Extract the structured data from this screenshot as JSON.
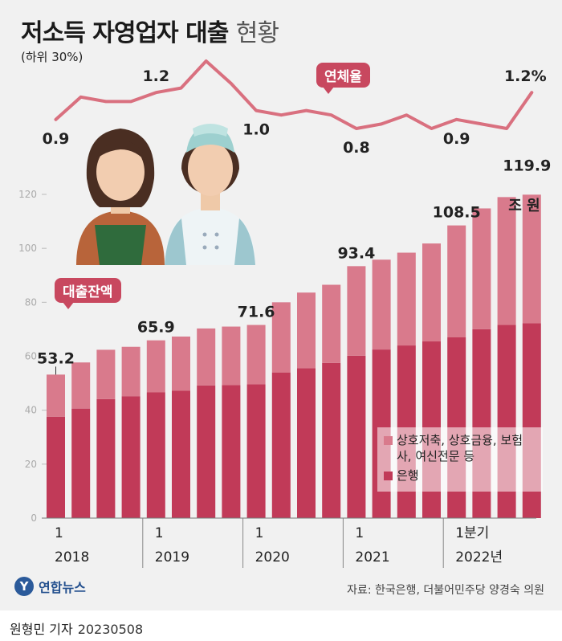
{
  "title": {
    "main": "저소득 자영업자 대출",
    "suffix": "현황"
  },
  "subtitle": "(하위 30%)",
  "badges": {
    "delinquency": "연체율",
    "loan_balance": "대출잔액"
  },
  "colors": {
    "nonbank": "#d97a8c",
    "bank": "#c13a58",
    "line": "#d9707f",
    "badge": "#c8485f"
  },
  "unit_label": "조 원",
  "illustration": {
    "people": [
      "shop-owner-icon",
      "chef-icon"
    ]
  },
  "source": "자료: 한국은행, 더불어민주당 양경숙 의원",
  "agency": "연합뉴스",
  "reporter": "원형민 기자",
  "date": "20230508",
  "chart_data": {
    "type": "bar",
    "stacked": true,
    "categories": [
      "2018Q1",
      "2018Q2",
      "2018Q3",
      "2018Q4",
      "2019Q1",
      "2019Q2",
      "2019Q3",
      "2019Q4",
      "2020Q1",
      "2020Q2",
      "2020Q3",
      "2020Q4",
      "2021Q1",
      "2021Q2",
      "2021Q3",
      "2021Q4",
      "2022Q1",
      "2022Q2",
      "2022Q3",
      "2022Q4"
    ],
    "series": [
      {
        "name": "은행",
        "values": [
          37.6,
          40.6,
          44.1,
          45.2,
          46.6,
          47.2,
          49.2,
          49.3,
          49.6,
          54.0,
          55.6,
          57.5,
          60.2,
          62.5,
          64.0,
          65.5,
          67.0,
          70.0,
          71.6,
          72.2
        ]
      },
      {
        "name": "상호저축, 상호금융, 보험사, 여신전문 등",
        "values": [
          15.6,
          17.1,
          18.3,
          18.3,
          19.3,
          20.1,
          21.1,
          21.7,
          22.0,
          26.0,
          28.0,
          29.0,
          33.2,
          33.3,
          34.4,
          36.3,
          41.5,
          44.8,
          47.4,
          47.7
        ]
      }
    ],
    "totals_labeled": {
      "2018Q1": "53.2",
      "2019Q1": "65.9",
      "2020Q1": "71.6",
      "2021Q1": "93.4",
      "2022Q1": "108.5",
      "2022Q4": "119.9"
    },
    "ylim": [
      0,
      120
    ],
    "yticks": [
      "0",
      "20",
      "40",
      "60",
      "80",
      "100",
      "120"
    ],
    "x_labels": [
      {
        "index": 0,
        "top": "1",
        "bottom": "2018"
      },
      {
        "index": 4,
        "top": "1",
        "bottom": "2019"
      },
      {
        "index": 8,
        "top": "1",
        "bottom": "2020"
      },
      {
        "index": 12,
        "top": "1",
        "bottom": "2021"
      },
      {
        "index": 16,
        "top": "1분기",
        "bottom": "2022년"
      }
    ],
    "delinquency_rate": {
      "name": "연체율",
      "values": [
        0.9,
        1.15,
        1.1,
        1.1,
        1.2,
        1.25,
        1.55,
        1.3,
        1.0,
        0.95,
        1.0,
        0.95,
        0.8,
        0.85,
        0.95,
        0.8,
        0.9,
        0.85,
        0.8,
        1.2
      ],
      "labels": [
        {
          "index": 0,
          "text": "0.9"
        },
        {
          "index": 4,
          "text": "1.2"
        },
        {
          "index": 8,
          "text": "1.0"
        },
        {
          "index": 12,
          "text": "0.8"
        },
        {
          "index": 16,
          "text": "0.9"
        },
        {
          "index": 19,
          "text": "1.2%"
        }
      ]
    },
    "legend_position": "bottom-right"
  }
}
